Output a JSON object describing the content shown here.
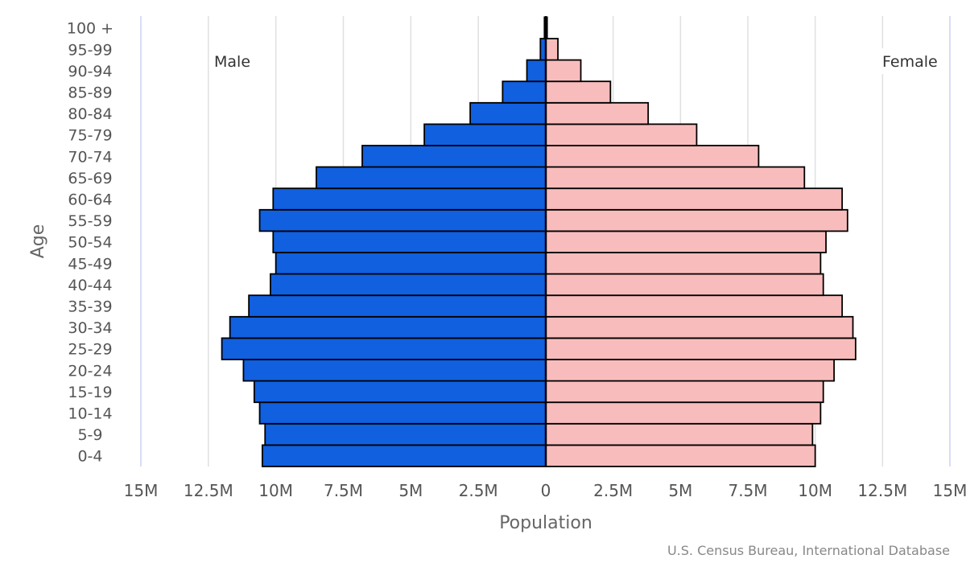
{
  "chart_data": {
    "type": "bar",
    "orientation": "horizontal",
    "layout": "population-pyramid",
    "categories": [
      "0-4",
      "5-9",
      "10-14",
      "15-19",
      "20-24",
      "25-29",
      "30-34",
      "35-39",
      "40-44",
      "45-49",
      "50-54",
      "55-59",
      "60-64",
      "65-69",
      "70-74",
      "75-79",
      "80-84",
      "85-89",
      "90-94",
      "95-99",
      "100 +"
    ],
    "series": [
      {
        "name": "Male",
        "color": "#1060e0",
        "values": [
          10.5,
          10.4,
          10.6,
          10.8,
          11.2,
          12.0,
          11.7,
          11.0,
          10.2,
          10.0,
          10.1,
          10.6,
          10.1,
          8.5,
          6.8,
          4.5,
          2.8,
          1.6,
          0.7,
          0.2,
          0.05
        ]
      },
      {
        "name": "Female",
        "color": "#f9bcbc",
        "values": [
          10.0,
          9.9,
          10.2,
          10.3,
          10.7,
          11.5,
          11.4,
          11.0,
          10.3,
          10.2,
          10.4,
          11.2,
          11.0,
          9.6,
          7.9,
          5.6,
          3.8,
          2.4,
          1.3,
          0.45,
          0.05
        ]
      }
    ],
    "value_unit": "millions",
    "xlim": [
      -15,
      15
    ],
    "xticks": [
      -15,
      -12.5,
      -10,
      -7.5,
      -5,
      -2.5,
      0,
      2.5,
      5,
      7.5,
      10,
      12.5,
      15
    ],
    "xtick_labels": [
      "15M",
      "12.5M",
      "10M",
      "7.5M",
      "5M",
      "2.5M",
      "0",
      "2.5M",
      "5M",
      "7.5M",
      "10M",
      "12.5M",
      "15M"
    ],
    "xlabel": "Population",
    "ylabel": "Age",
    "grid": true,
    "legend": "none"
  },
  "labels": {
    "male": "Male",
    "female": "Female",
    "source": "U.S. Census Bureau, International Database"
  }
}
